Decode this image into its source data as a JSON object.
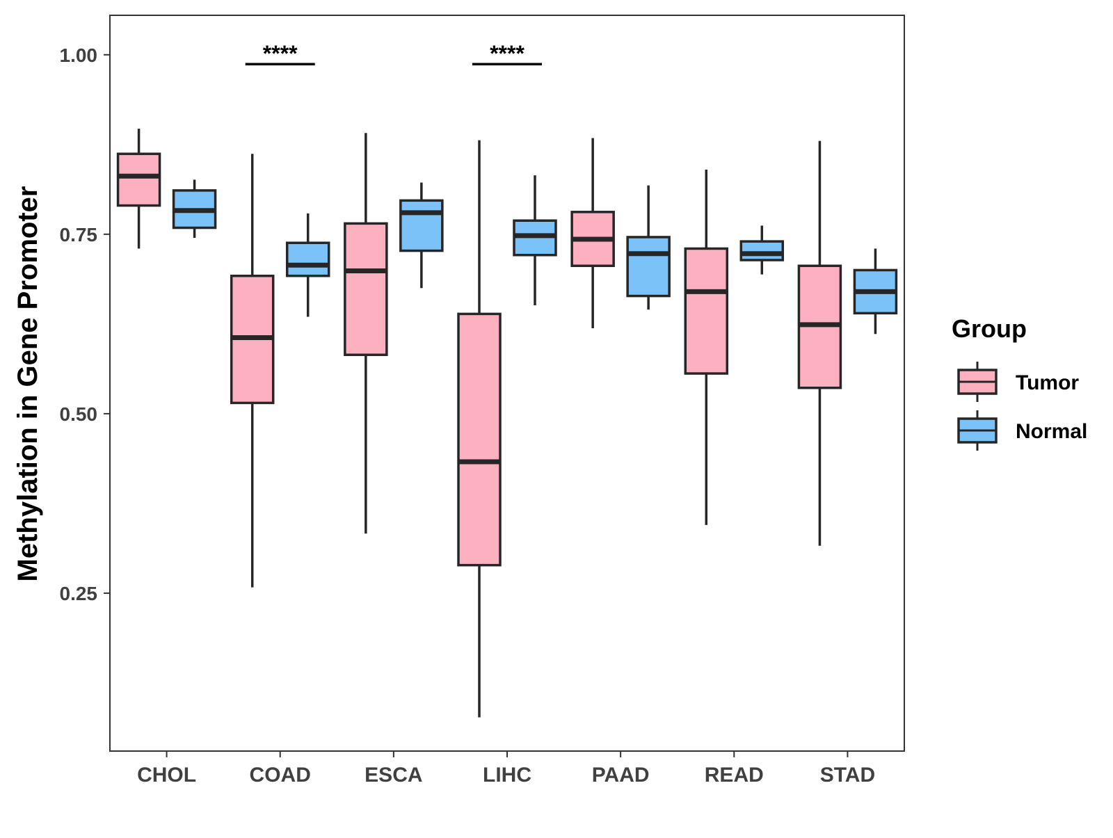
{
  "chart_data": {
    "type": "boxplot",
    "title": "",
    "xlabel": "",
    "ylabel": "Methylation in Gene Promoter",
    "ylim": [
      0.03,
      1.055
    ],
    "yticks": [
      0.25,
      0.5,
      0.75,
      1.0
    ],
    "ytick_labels": [
      "0.25",
      "0.50",
      "0.75",
      "1.00"
    ],
    "grid": false,
    "categories": [
      "CHOL",
      "COAD",
      "ESCA",
      "LIHC",
      "PAAD",
      "READ",
      "STAD"
    ],
    "legend": {
      "title": "Group",
      "position": "right",
      "entries": [
        {
          "name": "Tumor",
          "color": "#FDB0C0"
        },
        {
          "name": "Normal",
          "color": "#7AC2F8"
        }
      ]
    },
    "series": [
      {
        "name": "Tumor",
        "color": "#FDB0C0",
        "boxes": [
          {
            "category": "CHOL",
            "min": 0.73,
            "q1": 0.79,
            "median": 0.831,
            "q3": 0.862,
            "max": 0.897
          },
          {
            "category": "COAD",
            "min": 0.258,
            "q1": 0.515,
            "median": 0.606,
            "q3": 0.692,
            "max": 0.862
          },
          {
            "category": "ESCA",
            "min": 0.333,
            "q1": 0.582,
            "median": 0.699,
            "q3": 0.765,
            "max": 0.891
          },
          {
            "category": "LIHC",
            "min": 0.077,
            "q1": 0.289,
            "median": 0.433,
            "q3": 0.639,
            "max": 0.881
          },
          {
            "category": "PAAD",
            "min": 0.619,
            "q1": 0.706,
            "median": 0.743,
            "q3": 0.781,
            "max": 0.884
          },
          {
            "category": "READ",
            "min": 0.345,
            "q1": 0.556,
            "median": 0.67,
            "q3": 0.73,
            "max": 0.84
          },
          {
            "category": "STAD",
            "min": 0.316,
            "q1": 0.536,
            "median": 0.624,
            "q3": 0.706,
            "max": 0.88
          }
        ]
      },
      {
        "name": "Normal",
        "color": "#7AC2F8",
        "boxes": [
          {
            "category": "CHOL",
            "min": 0.745,
            "q1": 0.759,
            "median": 0.783,
            "q3": 0.811,
            "max": 0.826
          },
          {
            "category": "COAD",
            "min": 0.635,
            "q1": 0.692,
            "median": 0.707,
            "q3": 0.738,
            "max": 0.779
          },
          {
            "category": "ESCA",
            "min": 0.675,
            "q1": 0.727,
            "median": 0.78,
            "q3": 0.797,
            "max": 0.822
          },
          {
            "category": "LIHC",
            "min": 0.651,
            "q1": 0.721,
            "median": 0.748,
            "q3": 0.769,
            "max": 0.832
          },
          {
            "category": "PAAD",
            "min": 0.645,
            "q1": 0.664,
            "median": 0.723,
            "q3": 0.746,
            "max": 0.818
          },
          {
            "category": "READ",
            "min": 0.694,
            "q1": 0.714,
            "median": 0.723,
            "q3": 0.74,
            "max": 0.762
          },
          {
            "category": "STAD",
            "min": 0.611,
            "q1": 0.64,
            "median": 0.67,
            "q3": 0.7,
            "max": 0.73
          }
        ]
      }
    ],
    "annotations": [
      {
        "category": "COAD",
        "text": "****",
        "y": 0.987
      },
      {
        "category": "LIHC",
        "text": "****",
        "y": 0.987
      }
    ]
  }
}
